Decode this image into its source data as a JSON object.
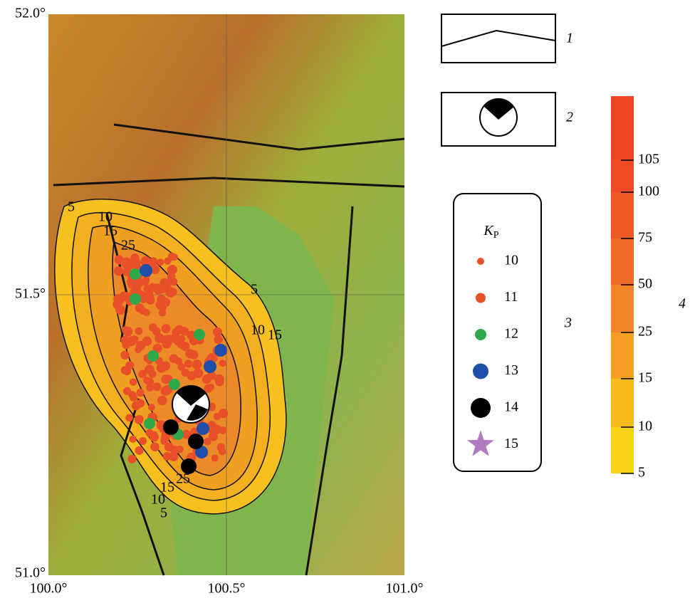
{
  "map": {
    "lat_labels": [
      "52.0°",
      "51.5°",
      "51.0°"
    ],
    "lon_labels": [
      "100.0°",
      "100.5°",
      "101.0°"
    ],
    "contour_labels": [
      "5",
      "10",
      "15",
      "25",
      "5",
      "10",
      "15",
      "25",
      "15",
      "10",
      "5"
    ]
  },
  "legend": {
    "items": [
      "1",
      "2",
      "3",
      "4"
    ]
  },
  "magnitude_legend": {
    "title": "K",
    "title_sub": "P",
    "classes": [
      "10",
      "11",
      "12",
      "13",
      "14",
      "15"
    ]
  },
  "color_scale": {
    "labels": [
      "105",
      "100",
      "75",
      "50",
      "25",
      "15",
      "10",
      "5"
    ]
  }
}
